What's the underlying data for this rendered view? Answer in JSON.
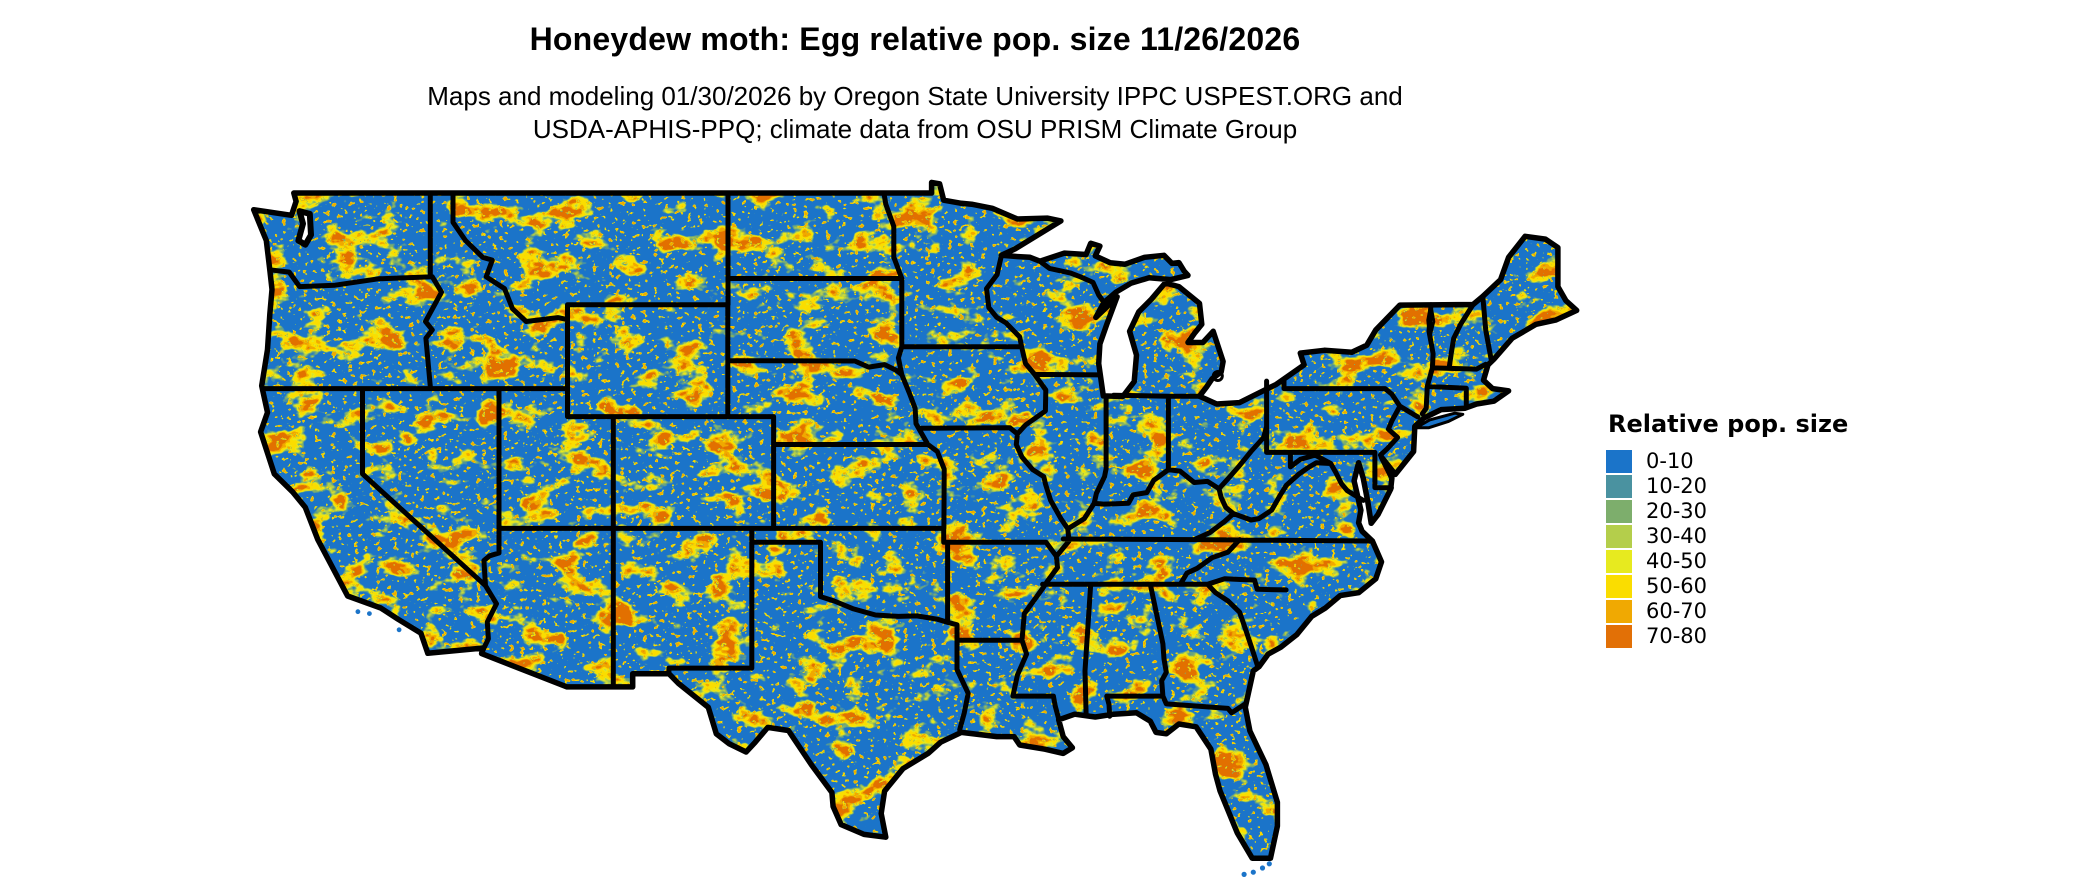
{
  "header": {
    "title": "Honeydew moth: Egg relative pop. size 11/26/2026",
    "subtitle_line1": "Maps and modeling 01/30/2026 by Oregon State University IPPC USPEST.ORG and",
    "subtitle_line2": "USDA-APHIS-PPQ; climate data from OSU PRISM Climate Group"
  },
  "legend": {
    "title": "Relative pop. size",
    "entries": [
      {
        "label": "0-10",
        "color": "#1B74C9"
      },
      {
        "label": "10-20",
        "color": "#4A92A0"
      },
      {
        "label": "20-30",
        "color": "#7DAE6C"
      },
      {
        "label": "30-40",
        "color": "#B4CE4B"
      },
      {
        "label": "40-50",
        "color": "#E7EA1F"
      },
      {
        "label": "50-60",
        "color": "#FADD00"
      },
      {
        "label": "60-70",
        "color": "#F0A902"
      },
      {
        "label": "70-80",
        "color": "#E27006"
      }
    ]
  },
  "map": {
    "base_color": "#1B74C9",
    "border_color": "#000000",
    "water_color": "#FFFFFF"
  }
}
